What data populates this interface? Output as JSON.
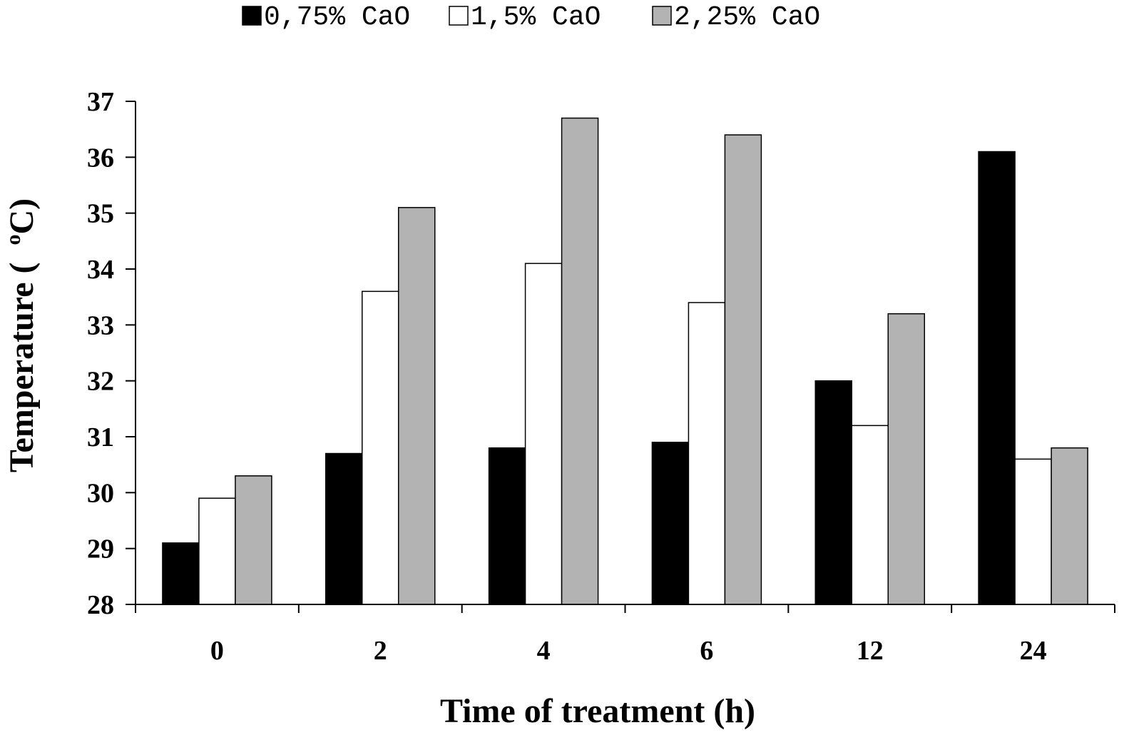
{
  "chart_data": {
    "type": "bar",
    "title": "",
    "xlabel": "Time of treatment (h)",
    "ylabel": "Temperature ( °C)",
    "ylabel_parts": {
      "before": "Temperature (  ",
      "superscript": "o",
      "after": "C)"
    },
    "categories": [
      "0",
      "2",
      "4",
      "6",
      "12",
      "24"
    ],
    "ylim": [
      28,
      37
    ],
    "yticks": [
      "28",
      "29",
      "30",
      "31",
      "32",
      "33",
      "34",
      "35",
      "36",
      "37"
    ],
    "grid": false,
    "legend_position": "top",
    "series": [
      {
        "name": "0,75% CaO",
        "color": "#000000",
        "values": [
          29.1,
          30.7,
          30.8,
          30.9,
          32.0,
          36.1
        ]
      },
      {
        "name": "1,5% CaO",
        "color": "#ffffff",
        "values": [
          29.9,
          33.6,
          34.1,
          33.4,
          31.2,
          30.6
        ]
      },
      {
        "name": "2,25% CaO",
        "color": "#b3b3b3",
        "values": [
          30.3,
          35.1,
          36.7,
          36.4,
          33.2,
          30.8
        ]
      }
    ]
  }
}
